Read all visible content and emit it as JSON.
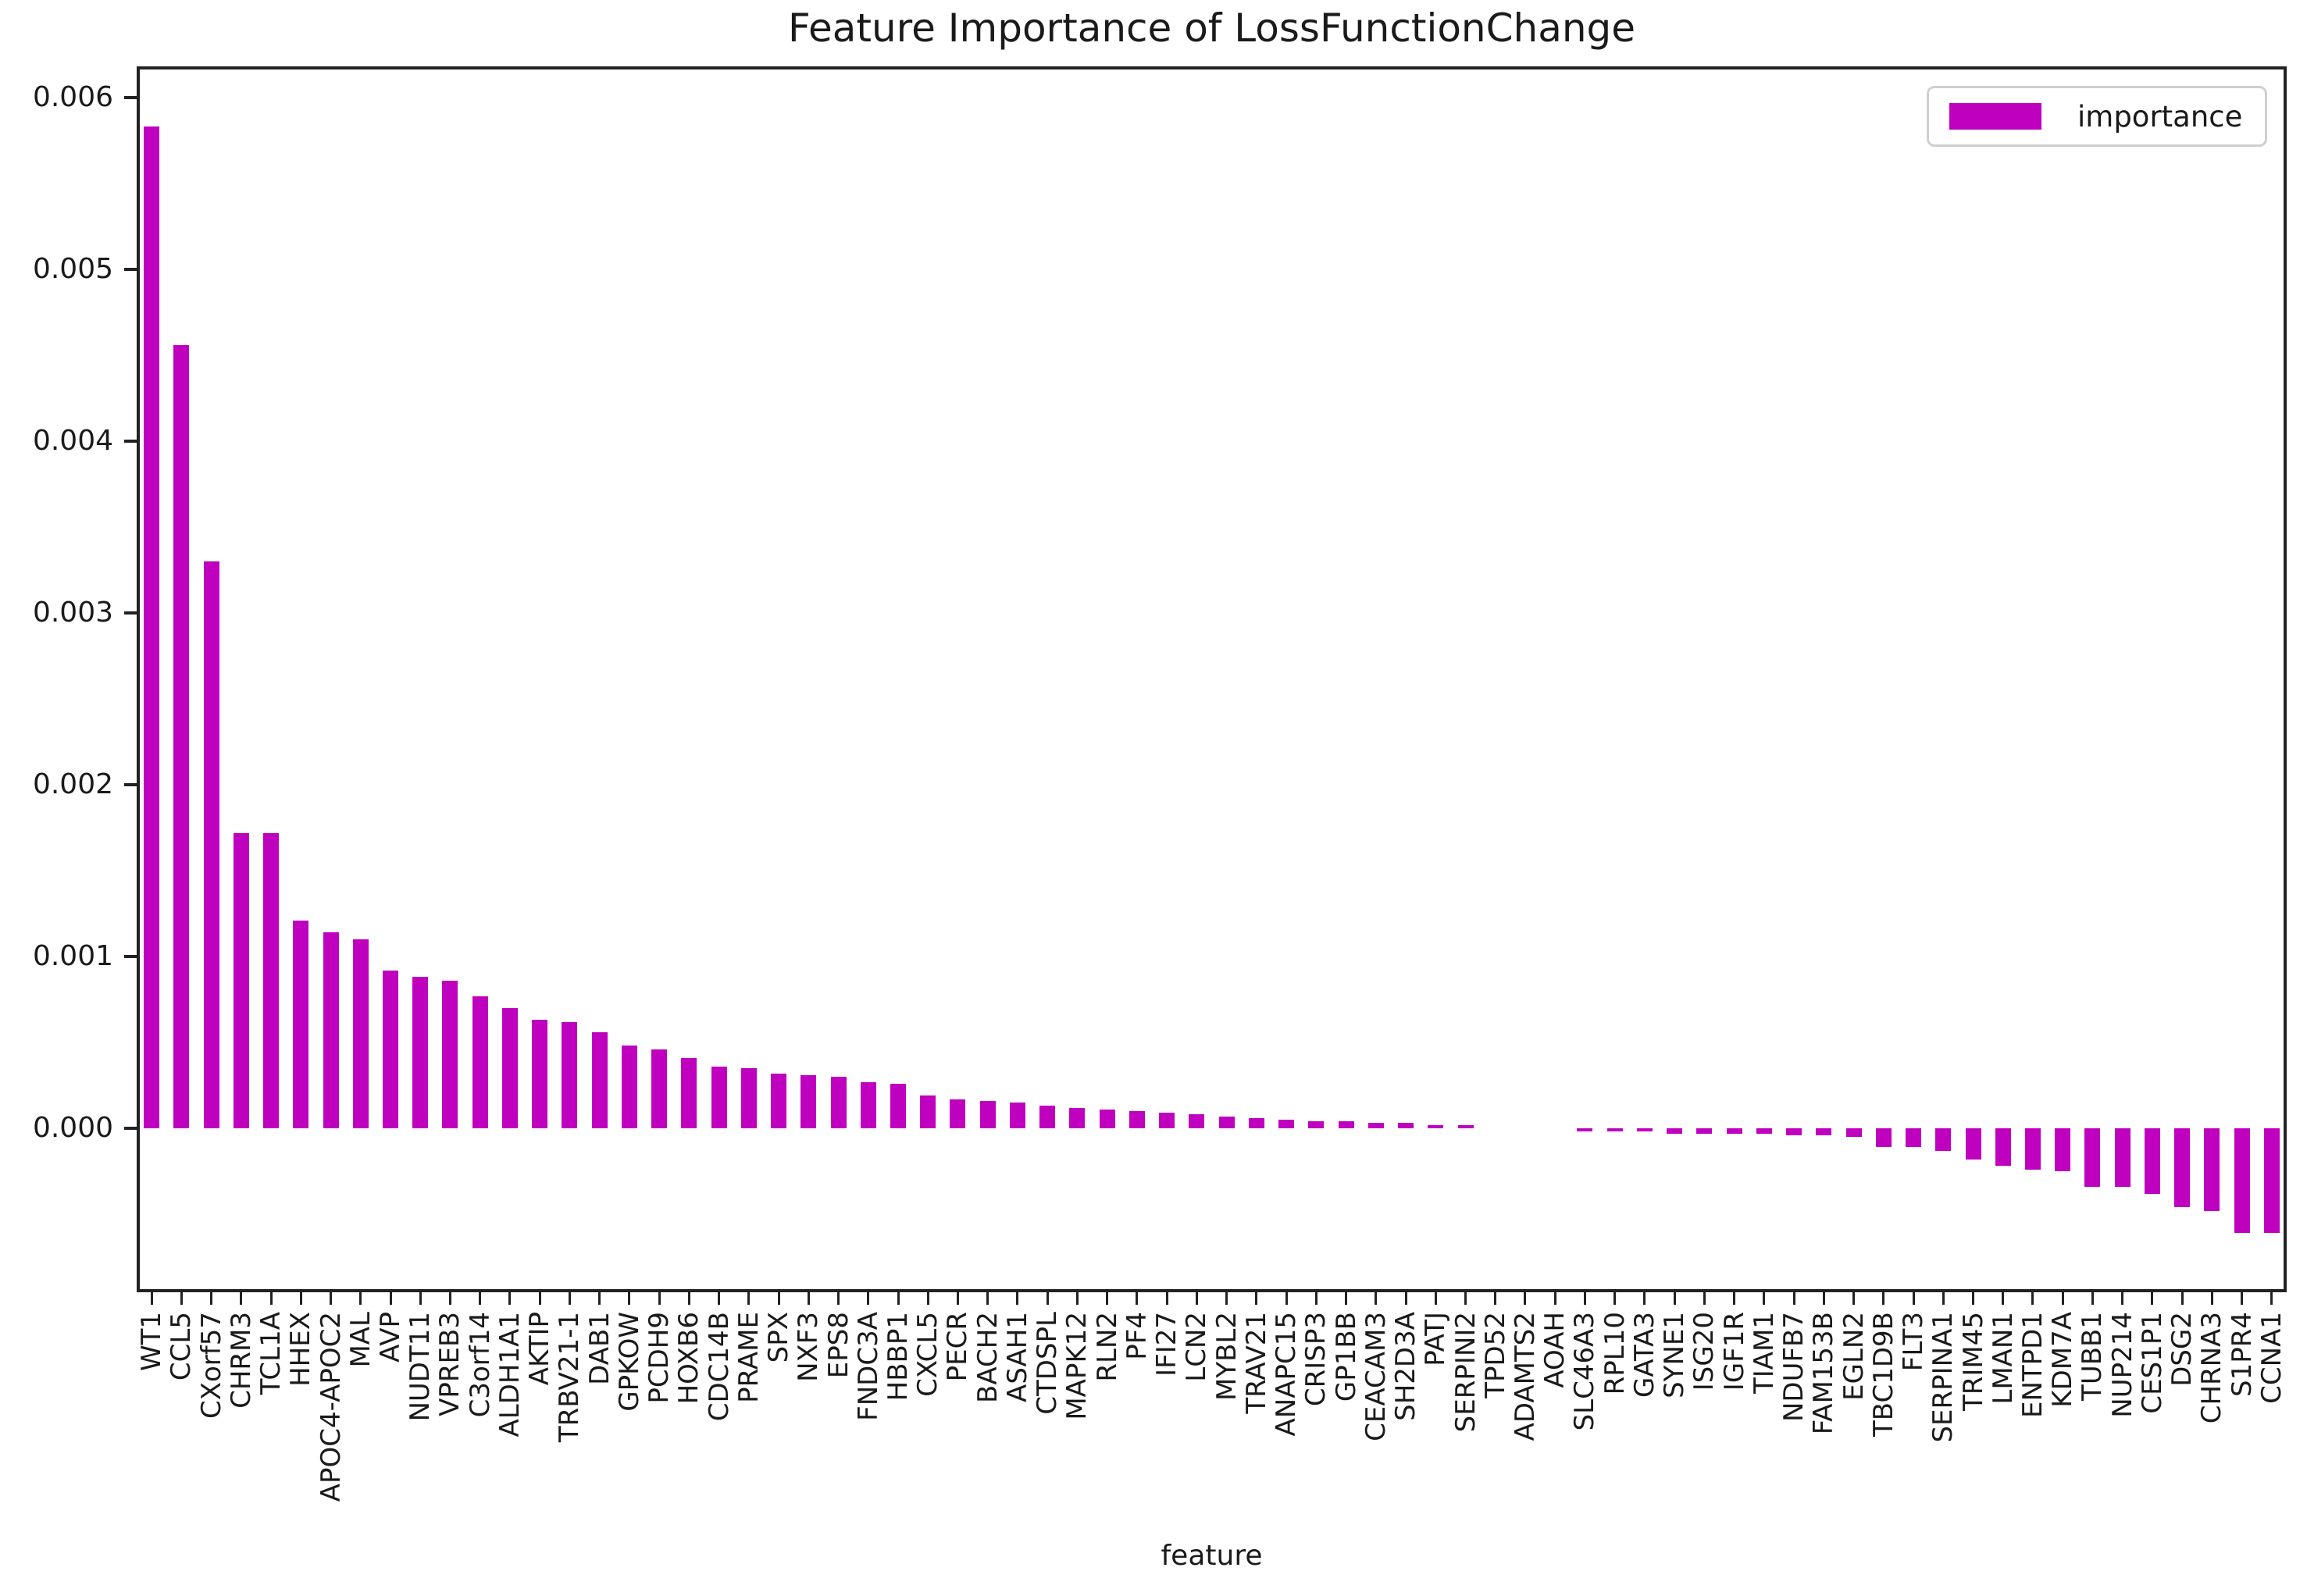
{
  "chart_data": {
    "type": "bar",
    "title": "Feature Importance of LossFunctionChange",
    "xlabel": "feature",
    "ylabel": "",
    "legend": [
      "importance"
    ],
    "legend_position": "upper right",
    "bar_color": "#BF00BF",
    "grid": false,
    "ylim": [
      -0.00095,
      0.00618
    ],
    "y_tick_labels": [
      "0.000",
      "0.001",
      "0.002",
      "0.003",
      "0.004",
      "0.005",
      "0.006"
    ],
    "y_tick_values": [
      0.0,
      0.001,
      0.002,
      0.003,
      0.004,
      0.005,
      0.006
    ],
    "categories": [
      "WT1",
      "CCL5",
      "CXorf57",
      "CHRM3",
      "TCL1A",
      "HHEX",
      "APOC4-APOC2",
      "MAL",
      "AVP",
      "NUDT11",
      "VPREB3",
      "C3orf14",
      "ALDH1A1",
      "AKTIP",
      "TRBV21-1",
      "DAB1",
      "GPKOW",
      "PCDH9",
      "HOXB6",
      "CDC14B",
      "PRAME",
      "SPX",
      "NXF3",
      "EPS8",
      "FNDC3A",
      "HBBP1",
      "CXCL5",
      "PECR",
      "BACH2",
      "ASAH1",
      "CTDSPL",
      "MAPK12",
      "RLN2",
      "PF4",
      "IFI27",
      "LCN2",
      "MYBL2",
      "TRAV21",
      "ANAPC15",
      "CRISP3",
      "GP1BB",
      "CEACAM3",
      "SH2D3A",
      "PATJ",
      "SERPINI2",
      "TPD52",
      "ADAMTS2",
      "AOAH",
      "SLC46A3",
      "RPL10",
      "GATA3",
      "SYNE1",
      "ISG20",
      "IGF1R",
      "TIAM1",
      "NDUFB7",
      "FAM153B",
      "EGLN2",
      "TBC1D9B",
      "FLT3",
      "SERPINA1",
      "TRIM45",
      "LMAN1",
      "ENTPD1",
      "KDM7A",
      "TUBB1",
      "NUP214",
      "CES1P1",
      "DSG2",
      "CHRNA3",
      "S1PR4",
      "CCNA1"
    ],
    "values": [
      0.00583,
      0.00456,
      0.0033,
      0.00172,
      0.00172,
      0.00121,
      0.00114,
      0.0011,
      0.00092,
      0.00088,
      0.00086,
      0.00077,
      0.0007,
      0.00063,
      0.00062,
      0.00056,
      0.00048,
      0.00046,
      0.00041,
      0.00036,
      0.00035,
      0.00032,
      0.00031,
      0.0003,
      0.00027,
      0.00026,
      0.00019,
      0.00017,
      0.00016,
      0.00015,
      0.00013,
      0.00012,
      0.00011,
      0.0001,
      9e-05,
      8e-05,
      7e-05,
      6e-05,
      5e-05,
      4e-05,
      4e-05,
      3e-05,
      3e-05,
      2e-05,
      2e-05,
      0.0,
      0.0,
      0.0,
      -2e-05,
      -2e-05,
      -2e-05,
      -3e-05,
      -3e-05,
      -3e-05,
      -3e-05,
      -4e-05,
      -4e-05,
      -5e-05,
      -0.00011,
      -0.00011,
      -0.00013,
      -0.00018,
      -0.00022,
      -0.00024,
      -0.00025,
      -0.00034,
      -0.00034,
      -0.00038,
      -0.00046,
      -0.00048,
      -0.00061,
      -0.00061
    ]
  }
}
